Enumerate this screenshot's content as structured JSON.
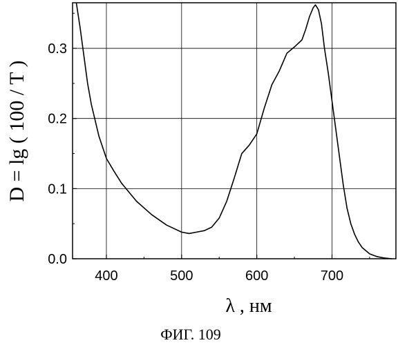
{
  "chart_data": {
    "type": "line",
    "title": "",
    "xlabel": "λ , нм",
    "ylabel": "D = lg ( 100 / T )",
    "caption": "ФИГ. 109",
    "xlim": [
      355,
      785
    ],
    "ylim": [
      0.0,
      0.365
    ],
    "xticks": [
      400,
      500,
      600,
      700
    ],
    "yticks": [
      0.0,
      0.1,
      0.2,
      0.3
    ],
    "xtick_labels": [
      "400",
      "500",
      "600",
      "700"
    ],
    "ytick_labels": [
      "0.0",
      "0.1",
      "0.2",
      "0.3"
    ],
    "grid": true,
    "series": [
      {
        "x": [
          360,
          365,
          370,
          375,
          380,
          390,
          400,
          410,
          420,
          440,
          460,
          480,
          500,
          510,
          520,
          530,
          540,
          550,
          560,
          570,
          580,
          590,
          600,
          610,
          620,
          630,
          640,
          650,
          660,
          665,
          670,
          675,
          678,
          682,
          686,
          690,
          695,
          700,
          705,
          710,
          715,
          720,
          725,
          730,
          735,
          740,
          750,
          760,
          770,
          780
        ],
        "y": [
          0.365,
          0.33,
          0.29,
          0.25,
          0.22,
          0.175,
          0.143,
          0.125,
          0.108,
          0.082,
          0.063,
          0.048,
          0.038,
          0.036,
          0.038,
          0.04,
          0.045,
          0.058,
          0.082,
          0.115,
          0.15,
          0.162,
          0.178,
          0.215,
          0.248,
          0.268,
          0.293,
          0.302,
          0.312,
          0.327,
          0.345,
          0.358,
          0.362,
          0.355,
          0.335,
          0.3,
          0.265,
          0.225,
          0.185,
          0.145,
          0.105,
          0.072,
          0.05,
          0.035,
          0.024,
          0.016,
          0.007,
          0.003,
          0.001,
          0.0
        ]
      }
    ]
  }
}
